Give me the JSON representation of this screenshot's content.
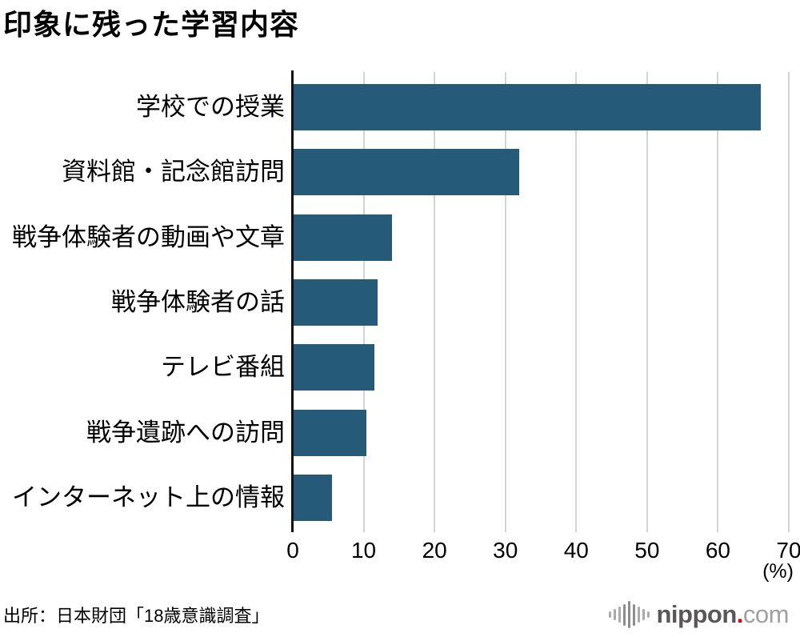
{
  "title": "印象に残った学習内容",
  "source": "出所：日本財団「18歳意識調査」",
  "chart_data": {
    "type": "bar",
    "orientation": "horizontal",
    "title": "印象に残った学習内容",
    "categories": [
      "学校での授業",
      "資料館・記念館訪問",
      "戦争体験者の動画や文章",
      "戦争体験者の話",
      "テレビ番組",
      "戦争遺跡への訪問",
      "インターネット上の情報"
    ],
    "values": [
      66,
      32,
      14,
      12,
      11.5,
      10.4,
      5.5
    ],
    "xlim": [
      0,
      70
    ],
    "xticks": [
      0,
      10,
      20,
      30,
      40,
      50,
      60,
      70
    ],
    "xlabel_unit": "(%)",
    "grid": "vertical",
    "legend": "none",
    "bar_color": "#255a78",
    "gridline_color": "#d3d3d3",
    "axis_color": "#111111"
  },
  "branding": {
    "logo_main": "nippon",
    "logo_dot": ".",
    "logo_suffix": "com",
    "colors": {
      "main": "#595757",
      "dot": "#e60012",
      "suffix": "#9fa0a0"
    }
  }
}
